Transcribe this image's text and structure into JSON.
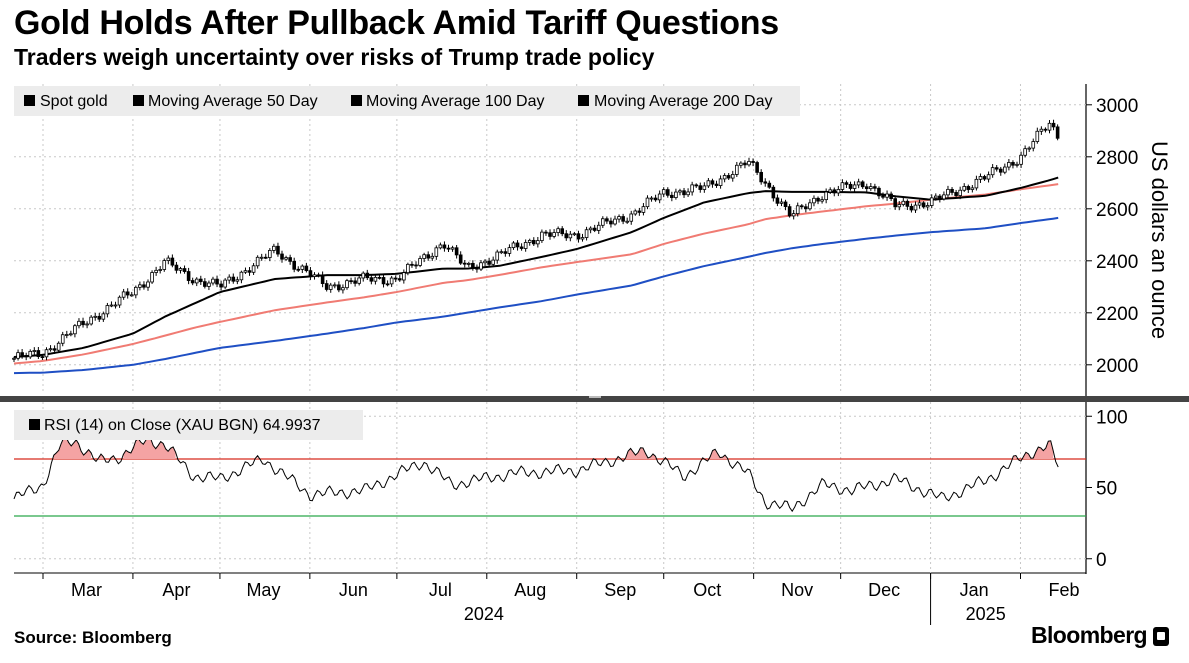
{
  "header": {
    "title": "Gold Holds After Pullback Amid Tariff Questions",
    "subtitle": "Traders weigh uncertainty over risks of Trump trade policy"
  },
  "footer": {
    "source": "Source: Bloomberg",
    "brand": "Bloomberg"
  },
  "colors": {
    "spot": "#000000",
    "ma50": "#000000",
    "ma100": "#f07b73",
    "ma200": "#1f4fc4",
    "rsi_line": "#000000",
    "rsi_fill": "#f4a3a3",
    "overbought": "#d62b1f",
    "oversold": "#2aa84a",
    "grid": "#c8c8c8",
    "legend_bg": "#ececec"
  },
  "chart_data": [
    {
      "type": "line",
      "title": "Gold Holds After Pullback Amid Tariff Questions",
      "ylabel": "US dollars an ounce",
      "ylim": [
        1880,
        3080
      ],
      "yticks": [
        2000,
        2200,
        2400,
        2600,
        2800,
        3000
      ],
      "x_dates": [
        "2024-02-20",
        "2024-03-01",
        "2024-03-15",
        "2024-04-01",
        "2024-04-12",
        "2024-04-22",
        "2024-05-01",
        "2024-05-20",
        "2024-06-07",
        "2024-06-20",
        "2024-07-01",
        "2024-07-17",
        "2024-07-25",
        "2024-08-05",
        "2024-08-20",
        "2024-09-01",
        "2024-09-20",
        "2024-10-01",
        "2024-10-15",
        "2024-10-30",
        "2024-11-05",
        "2024-11-14",
        "2024-11-25",
        "2024-12-10",
        "2024-12-20",
        "2025-01-01",
        "2025-01-20",
        "2025-02-01",
        "2025-02-11",
        "2025-02-14"
      ],
      "x_labels": [
        "Mar",
        "Apr",
        "May",
        "Jun",
        "Jul",
        "Aug",
        "Sep",
        "Oct",
        "Nov",
        "Dec",
        "Jan",
        "Feb"
      ],
      "x_year_labels": [
        "2024",
        "2025"
      ],
      "legend_position": "top-left",
      "series": [
        {
          "name": "Spot gold",
          "values": [
            2025,
            2045,
            2160,
            2280,
            2395,
            2330,
            2300,
            2440,
            2300,
            2330,
            2330,
            2470,
            2370,
            2420,
            2500,
            2500,
            2580,
            2660,
            2680,
            2780,
            2700,
            2570,
            2660,
            2700,
            2610,
            2625,
            2720,
            2800,
            2930,
            2880
          ]
        },
        {
          "name": "Moving Average 50 Day",
          "values": [
            2030,
            2038,
            2065,
            2120,
            2185,
            2235,
            2280,
            2330,
            2345,
            2345,
            2350,
            2370,
            2370,
            2380,
            2415,
            2445,
            2510,
            2565,
            2625,
            2660,
            2668,
            2665,
            2665,
            2663,
            2648,
            2635,
            2650,
            2680,
            2710,
            2720
          ]
        },
        {
          "name": "Moving Average 100 Day",
          "values": [
            2005,
            2015,
            2040,
            2080,
            2112,
            2142,
            2165,
            2210,
            2240,
            2260,
            2280,
            2315,
            2325,
            2345,
            2375,
            2395,
            2425,
            2465,
            2505,
            2540,
            2560,
            2575,
            2590,
            2610,
            2620,
            2635,
            2655,
            2675,
            2690,
            2695
          ]
        },
        {
          "name": "Moving Average 200 Day",
          "values": [
            1968,
            1970,
            1980,
            2000,
            2022,
            2045,
            2065,
            2092,
            2120,
            2142,
            2163,
            2185,
            2200,
            2220,
            2245,
            2270,
            2305,
            2340,
            2380,
            2415,
            2430,
            2448,
            2465,
            2485,
            2497,
            2510,
            2525,
            2545,
            2560,
            2565
          ]
        }
      ]
    },
    {
      "type": "line",
      "title": "RSI (14)  on Close (XAU BGN) 64.9937",
      "ylim": [
        -10,
        110
      ],
      "yticks": [
        0,
        50,
        100
      ],
      "overbought": 70,
      "oversold": 30,
      "x_dates": [
        "2024-02-20",
        "2024-03-01",
        "2024-03-07",
        "2024-03-12",
        "2024-03-20",
        "2024-03-28",
        "2024-04-06",
        "2024-04-12",
        "2024-04-22",
        "2024-05-01",
        "2024-05-16",
        "2024-06-01",
        "2024-06-20",
        "2024-07-10",
        "2024-07-20",
        "2024-08-10",
        "2024-09-01",
        "2024-09-25",
        "2024-10-08",
        "2024-10-20",
        "2024-10-30",
        "2024-11-05",
        "2024-11-14",
        "2024-11-25",
        "2024-12-05",
        "2024-12-20",
        "2025-01-05",
        "2025-01-20",
        "2025-01-30",
        "2025-02-05",
        "2025-02-11",
        "2025-02-14"
      ],
      "series": [
        {
          "name": "RSI (14)",
          "values": [
            42,
            52,
            80,
            83,
            68,
            72,
            84,
            80,
            58,
            56,
            70,
            45,
            48,
            68,
            52,
            60,
            62,
            76,
            58,
            75,
            60,
            40,
            35,
            52,
            48,
            56,
            42,
            55,
            68,
            75,
            80,
            65
          ]
        }
      ]
    }
  ]
}
